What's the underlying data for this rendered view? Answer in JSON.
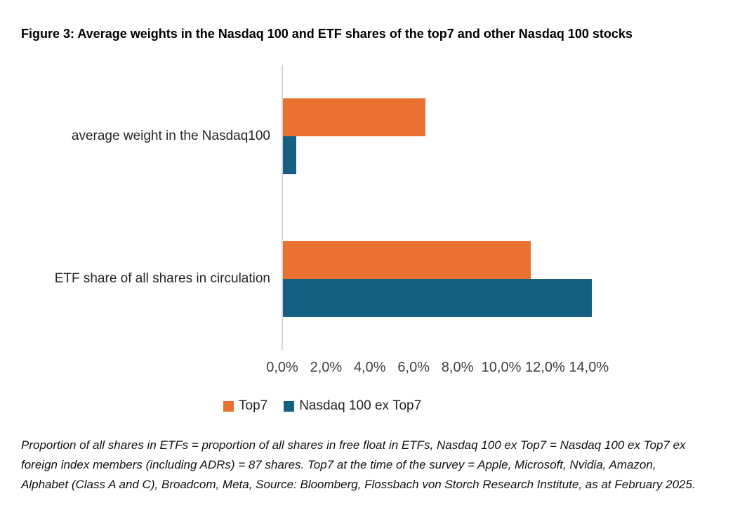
{
  "title": "Figure 3: Average weights in the Nasdaq 100 and ETF shares of the top7 and other Nasdaq 100 stocks",
  "colors": {
    "top7": "#E97132",
    "nasdaq_ex_top7": "#156082",
    "axis_line": "#D6D6D6",
    "tick_text": "#3f3f3f"
  },
  "chart_data": {
    "type": "bar",
    "orientation": "horizontal",
    "title": "",
    "xlabel": "",
    "ylabel": "",
    "categories": [
      "average weight in the Nasdaq100",
      "ETF share of all shares in circulation"
    ],
    "series": [
      {
        "name": "Top7",
        "color": "#E97132",
        "values_pct": [
          6.5,
          11.3
        ]
      },
      {
        "name": "Nasdaq 100 ex Top7",
        "color": "#156082",
        "values_pct": [
          0.6,
          14.1
        ]
      }
    ],
    "x_tick_labels": [
      "0,0%",
      "2,0%",
      "4,0%",
      "6,0%",
      "8,0%",
      "10,0%",
      "12,0%",
      "14,0%"
    ],
    "x_tick_step_pct": 2.0,
    "xlim_pct": [
      0,
      14.0
    ],
    "grid": false,
    "legend_position": "bottom",
    "number_format": "comma-decimal-percent"
  },
  "footnote": "Proportion of all shares in ETFs = proportion of all shares in free float in ETFs, Nasdaq 100 ex Top7 = Nasdaq 100 ex Top7 ex foreign index members (including ADRs) = 87 shares. Top7 at the time of the survey = Apple, Microsoft, Nvidia, Amazon, Alphabet (Class A and C), Broadcom, Meta, Source: Bloomberg, Flossbach von Storch Research Institute, as at February 2025."
}
